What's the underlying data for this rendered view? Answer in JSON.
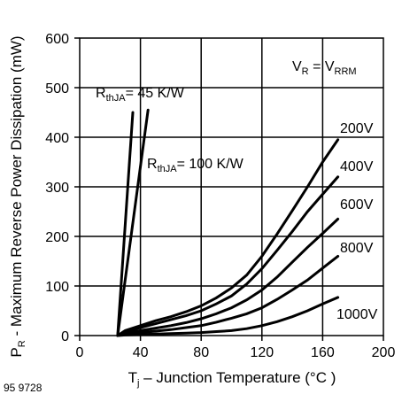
{
  "figure_id": "95 9728",
  "chart_data": {
    "type": "line",
    "xlabel": {
      "main": "T",
      "sub": "j",
      "rest": " – Junction Temperature (°C )"
    },
    "ylabel": {
      "sub": "R",
      "pre": "P",
      "rest": " - Maximum Reverse Power Dissipation (mW)"
    },
    "xlim": [
      0,
      200
    ],
    "ylim": [
      0,
      600
    ],
    "xticks": [
      0,
      40,
      80,
      120,
      160,
      200
    ],
    "yticks": [
      0,
      100,
      200,
      300,
      400,
      500,
      600
    ],
    "grid": true,
    "condition": {
      "a": "V",
      "a_sub": "R",
      "eq": " = ",
      "b": "V",
      "b_sub": "RRM"
    },
    "series": [
      {
        "name": "200V",
        "x": [
          25,
          30,
          40,
          50,
          60,
          70,
          80,
          90,
          100,
          110,
          120,
          130,
          140,
          150,
          160,
          170
        ],
        "y": [
          0,
          10,
          20,
          30,
          38,
          48,
          60,
          76,
          96,
          122,
          160,
          205,
          252,
          300,
          350,
          395
        ]
      },
      {
        "name": "400V",
        "x": [
          25,
          30,
          40,
          50,
          60,
          70,
          80,
          90,
          100,
          110,
          120,
          130,
          140,
          150,
          160,
          170
        ],
        "y": [
          0,
          8,
          16,
          24,
          32,
          40,
          50,
          64,
          80,
          104,
          135,
          172,
          210,
          250,
          285,
          320
        ]
      },
      {
        "name": "600V",
        "x": [
          25,
          30,
          40,
          50,
          60,
          70,
          80,
          90,
          100,
          110,
          120,
          130,
          140,
          150,
          160,
          170
        ],
        "y": [
          0,
          5,
          10,
          15,
          20,
          26,
          34,
          44,
          56,
          72,
          92,
          118,
          148,
          178,
          206,
          235
        ]
      },
      {
        "name": "800V",
        "x": [
          25,
          30,
          40,
          50,
          60,
          70,
          80,
          90,
          100,
          110,
          120,
          130,
          140,
          150,
          160,
          170
        ],
        "y": [
          0,
          3,
          6,
          9,
          12,
          16,
          20,
          27,
          35,
          44,
          56,
          73,
          92,
          112,
          136,
          160
        ]
      },
      {
        "name": "1000V",
        "x": [
          25,
          30,
          40,
          50,
          60,
          70,
          80,
          90,
          100,
          110,
          120,
          130,
          140,
          150,
          160,
          170
        ],
        "y": [
          0,
          1,
          2,
          3,
          4,
          5,
          6,
          8,
          10,
          14,
          20,
          28,
          38,
          50,
          64,
          77
        ]
      }
    ],
    "thermal_lines": [
      {
        "label": {
          "pre": "R",
          "sub": "thJA",
          "rest": "= 45 K/W"
        },
        "x": [
          25,
          35
        ],
        "y": [
          0,
          450
        ]
      },
      {
        "label": {
          "pre": "R",
          "sub": "thJA",
          "rest": "= 100 K/W"
        },
        "x": [
          25,
          45
        ],
        "y": [
          0,
          455
        ]
      }
    ]
  }
}
